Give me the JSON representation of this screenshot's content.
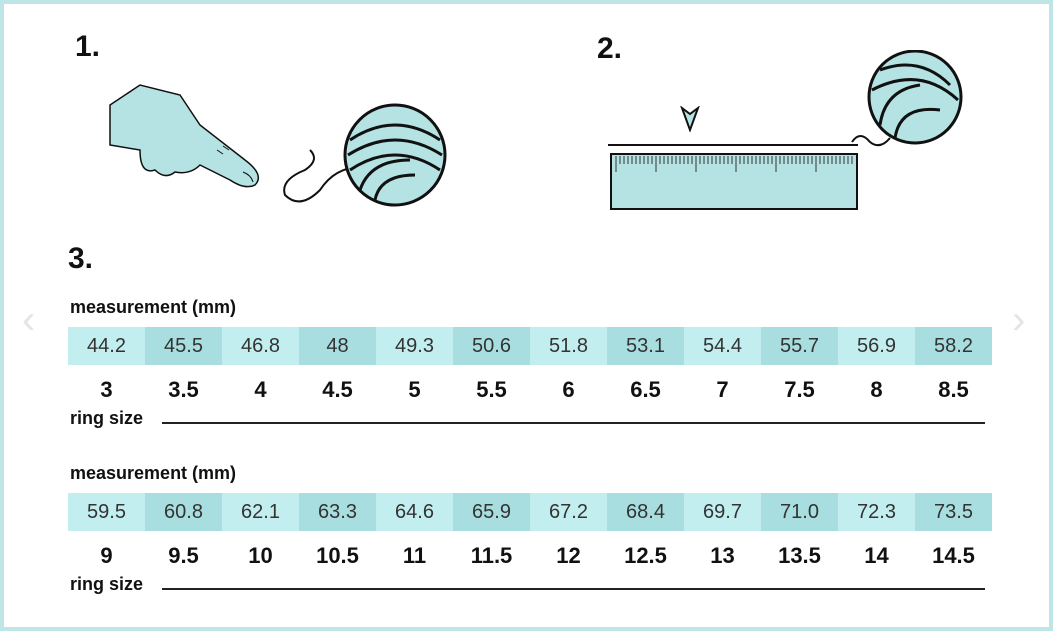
{
  "steps": [
    "1.",
    "2.",
    "3."
  ],
  "tables": [
    {
      "measurement_label": "measurement (mm)",
      "measurements": [
        "44.2",
        "45.5",
        "46.8",
        "48",
        "49.3",
        "50.6",
        "51.8",
        "53.1",
        "54.4",
        "55.7",
        "56.9",
        "58.2"
      ],
      "sizes": [
        "3",
        "3.5",
        "4",
        "4.5",
        "5",
        "5.5",
        "6",
        "6.5",
        "7",
        "7.5",
        "8",
        "8.5"
      ],
      "ring_size_label": "ring size"
    },
    {
      "measurement_label": "measurement (mm)",
      "measurements": [
        "59.5",
        "60.8",
        "62.1",
        "63.3",
        "64.6",
        "65.9",
        "67.2",
        "68.4",
        "69.7",
        "71.0",
        "72.3",
        "73.5"
      ],
      "sizes": [
        "9",
        "9.5",
        "10",
        "10.5",
        "11",
        "11.5",
        "12",
        "12.5",
        "13",
        "13.5",
        "14",
        "14.5"
      ],
      "ring_size_label": "ring size"
    }
  ],
  "colors": {
    "cell_light": "#c3eef0",
    "cell_dark": "#a8dedf",
    "frame": "#bfe6e6"
  },
  "icons": [
    "hand-pointing-icon",
    "yarn-ball-icon",
    "ruler-icon",
    "arrow-marker-icon",
    "chevron-left-icon",
    "chevron-right-icon"
  ]
}
